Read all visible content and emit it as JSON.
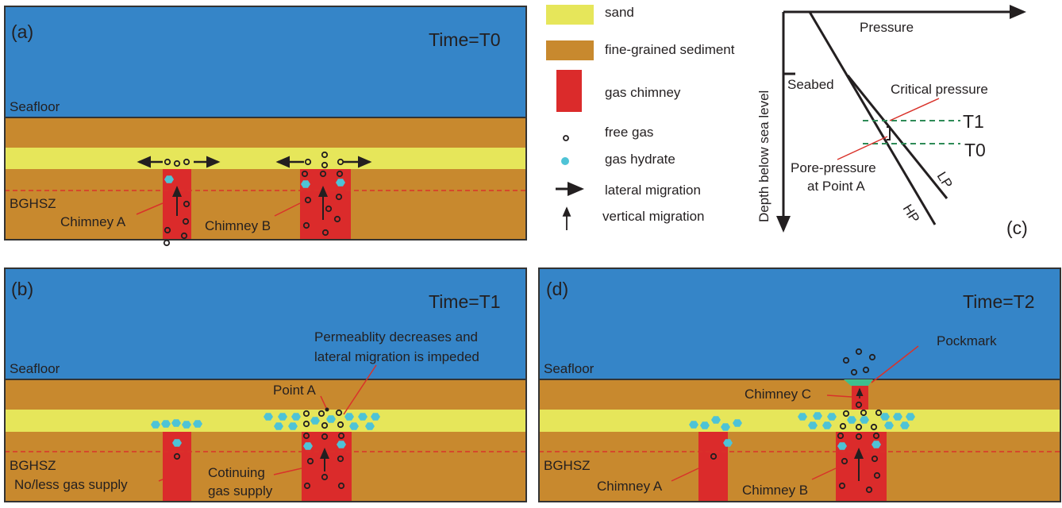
{
  "colors": {
    "seawater": "#3585c8",
    "sediment": "#c8892e",
    "sand": "#e6e65a",
    "chimney": "#db2b2b",
    "hydrate": "#4ec3d6",
    "pockmark": "#3dbf8e",
    "bghsz_line": "#d9322a",
    "time_line": "#2e8b57"
  },
  "panel_a": {
    "tag": "(a)",
    "time": "Time=T0",
    "seafloor": "Seafloor",
    "bghsz": "BGHSZ",
    "chimney_a": "Chimney A",
    "chimney_b": "Chimney B"
  },
  "panel_b": {
    "tag": "(b)",
    "time": "Time=T1",
    "seafloor": "Seafloor",
    "bghsz": "BGHSZ",
    "no_supply": "No/less gas supply",
    "continuing_1": "Cotinuing",
    "continuing_2": "gas supply",
    "perm_1": "Permeablity decreases and",
    "perm_2": "lateral migration is impeded",
    "point_a": "Point A"
  },
  "panel_d": {
    "tag": "(d)",
    "time": "Time=T2",
    "seafloor": "Seafloor",
    "bghsz": "BGHSZ",
    "chimney_a": "Chimney A",
    "chimney_b": "Chimney B",
    "chimney_c": "Chimney C",
    "pockmark": "Pockmark"
  },
  "legend": {
    "sand": "sand",
    "sediment": "fine-grained sediment",
    "chimney": "gas chimney",
    "free_gas": "free gas",
    "hydrate": "gas hydrate",
    "lateral": "lateral migration",
    "vertical": "vertical migration"
  },
  "panel_c": {
    "tag": "(c)",
    "x_axis": "Pressure",
    "y_axis": "Depth below  sea level",
    "seabed": "Seabed",
    "critical": "Critical pressure",
    "pore_1": "Pore-pressure",
    "pore_2": "at Point A",
    "t1": "T1",
    "t0": "T0",
    "lp": "LP",
    "hp": "HP"
  }
}
